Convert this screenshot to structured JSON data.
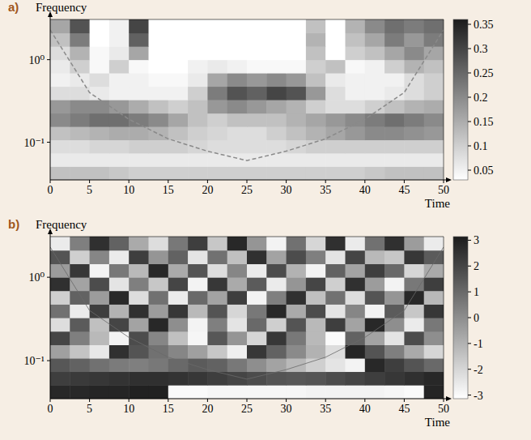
{
  "chart_data": [
    {
      "type": "heatmap",
      "title": "a)",
      "y_label": "Frequency",
      "x_label": "Time",
      "log": "y",
      "xlim": [
        0,
        50
      ],
      "ylim": [
        0.035,
        3.07
      ],
      "xticks": [
        0,
        5,
        10,
        15,
        20,
        25,
        30,
        35,
        40,
        45,
        50
      ],
      "yticks": [
        {
          "value": 0.1,
          "label": "10⁻¹"
        },
        {
          "value": 1,
          "label": "10⁰"
        }
      ],
      "x_bins": [
        0,
        2.5,
        5,
        7.5,
        10,
        12.5,
        15,
        17.5,
        20,
        22.5,
        25,
        27.5,
        30,
        32.5,
        35,
        37.5,
        40,
        42.5,
        45,
        47.5,
        50
      ],
      "y_bins": [
        0.035,
        0.051,
        0.074,
        0.107,
        0.155,
        0.225,
        0.327,
        0.475,
        0.69,
        1.0,
        1.45,
        2.11,
        3.07
      ],
      "cells": [
        [
          0.12,
          0.12,
          0.12,
          0.11,
          0.1,
          0.1,
          0.1,
          0.1,
          0.1,
          0.1,
          0.1,
          0.1,
          0.1,
          0.1,
          0.1,
          0.1,
          0.11,
          0.12,
          0.12,
          0.12
        ],
        [
          0.06,
          0.06,
          0.06,
          0.06,
          0.06,
          0.06,
          0.06,
          0.06,
          0.06,
          0.06,
          0.06,
          0.06,
          0.06,
          0.06,
          0.06,
          0.06,
          0.06,
          0.06,
          0.06,
          0.06
        ],
        [
          0.08,
          0.08,
          0.09,
          0.09,
          0.1,
          0.1,
          0.1,
          0.09,
          0.08,
          0.08,
          0.08,
          0.08,
          0.09,
          0.1,
          0.1,
          0.1,
          0.1,
          0.1,
          0.1,
          0.1
        ],
        [
          0.12,
          0.13,
          0.14,
          0.15,
          0.15,
          0.14,
          0.12,
          0.1,
          0.09,
          0.08,
          0.08,
          0.1,
          0.12,
          0.14,
          0.16,
          0.18,
          0.2,
          0.2,
          0.19,
          0.18
        ],
        [
          0.2,
          0.22,
          0.24,
          0.24,
          0.22,
          0.2,
          0.16,
          0.12,
          0.1,
          0.12,
          0.12,
          0.12,
          0.14,
          0.16,
          0.18,
          0.2,
          0.22,
          0.24,
          0.22,
          0.2
        ],
        [
          0.18,
          0.2,
          0.2,
          0.18,
          0.15,
          0.12,
          0.1,
          0.12,
          0.18,
          0.2,
          0.18,
          0.16,
          0.14,
          0.1,
          0.08,
          0.08,
          0.1,
          0.12,
          0.14,
          0.15
        ],
        [
          0.08,
          0.08,
          0.06,
          0.05,
          0.05,
          0.05,
          0.05,
          0.1,
          0.22,
          0.28,
          0.26,
          0.3,
          0.28,
          0.18,
          0.08,
          0.05,
          0.05,
          0.06,
          0.08,
          0.1
        ],
        [
          0.05,
          0.06,
          0.08,
          0.05,
          0.05,
          0.04,
          0.04,
          0.06,
          0.16,
          0.2,
          0.18,
          0.2,
          0.18,
          0.12,
          0.06,
          0.05,
          0.05,
          0.05,
          0.08,
          0.1
        ],
        [
          0.06,
          0.1,
          0.04,
          0.1,
          0.04,
          0.03,
          0.03,
          0.05,
          0.06,
          0.05,
          0.04,
          0.04,
          0.04,
          0.1,
          0.12,
          0.04,
          0.05,
          0.1,
          0.14,
          0.12
        ],
        [
          0.08,
          0.14,
          0.04,
          0.06,
          0.16,
          0.03,
          0.03,
          0.03,
          0.03,
          0.03,
          0.03,
          0.03,
          0.03,
          0.12,
          0.03,
          0.1,
          0.12,
          0.16,
          0.2,
          0.16
        ],
        [
          0.12,
          0.22,
          0.03,
          0.05,
          0.26,
          0.03,
          0.03,
          0.03,
          0.03,
          0.03,
          0.03,
          0.03,
          0.03,
          0.14,
          0.03,
          0.12,
          0.16,
          0.22,
          0.18,
          0.22
        ],
        [
          0.16,
          0.28,
          0.03,
          0.05,
          0.3,
          0.03,
          0.03,
          0.03,
          0.03,
          0.03,
          0.03,
          0.03,
          0.03,
          0.12,
          0.03,
          0.14,
          0.2,
          0.24,
          0.22,
          0.24
        ]
      ],
      "colorbar_lim": [
        0.03,
        0.36
      ],
      "colorbar_ticks": [
        0.05,
        0.1,
        0.15,
        0.2,
        0.25,
        0.3,
        0.35
      ],
      "cone_of_influence": {
        "line_style": "dashed",
        "x": [
          0,
          5,
          10,
          15,
          20,
          25,
          30,
          35,
          40,
          45,
          50
        ],
        "y": [
          2.3,
          0.4,
          0.19,
          0.11,
          0.078,
          0.06,
          0.078,
          0.11,
          0.19,
          0.4,
          2.3
        ]
      }
    },
    {
      "type": "heatmap",
      "title": "b)",
      "y_label": "Frequency",
      "x_label": "Time",
      "log": "y",
      "xlim": [
        0,
        50
      ],
      "ylim": [
        0.035,
        3.07
      ],
      "xticks": [
        0,
        5,
        10,
        15,
        20,
        25,
        30,
        35,
        40,
        45,
        50
      ],
      "yticks": [
        {
          "value": 0.1,
          "label": "10⁻¹"
        },
        {
          "value": 1,
          "label": "10⁰"
        }
      ],
      "x_bins": [
        0,
        2.5,
        5,
        7.5,
        10,
        12.5,
        15,
        17.5,
        20,
        22.5,
        25,
        27.5,
        30,
        32.5,
        35,
        37.5,
        40,
        42.5,
        45,
        47.5,
        50
      ],
      "y_bins": [
        0.035,
        0.051,
        0.074,
        0.107,
        0.155,
        0.225,
        0.327,
        0.475,
        0.69,
        1.0,
        1.45,
        2.11,
        3.07
      ],
      "cells": [
        [
          2.8,
          2.8,
          2.9,
          2.9,
          3.0,
          3.0,
          -3.0,
          -3.0,
          -2.9,
          -2.9,
          -2.9,
          -2.9,
          -2.9,
          -2.8,
          -2.8,
          -2.8,
          -2.8,
          -2.9,
          -3.0,
          2.9
        ],
        [
          2.2,
          2.3,
          2.4,
          2.5,
          2.6,
          2.6,
          2.5,
          2.4,
          2.2,
          2.0,
          1.8,
          1.6,
          1.5,
          1.6,
          1.8,
          2.0,
          2.2,
          2.4,
          2.6,
          2.8
        ],
        [
          1.5,
          1.2,
          0.8,
          0.5,
          0.4,
          0.6,
          1.0,
          1.4,
          1.2,
          0.6,
          0.0,
          -0.6,
          -1.2,
          -1.8,
          -2.4,
          -2.8,
          2.8,
          2.2,
          1.6,
          1.0
        ],
        [
          -0.5,
          -1.5,
          -2.5,
          2.6,
          1.6,
          0.8,
          0.2,
          -0.5,
          -1.6,
          -2.7,
          2.4,
          1.2,
          0.1,
          -1.0,
          -2.2,
          2.9,
          1.6,
          0.4,
          -0.8,
          -2.0
        ],
        [
          2.0,
          0.4,
          -1.2,
          -2.8,
          1.8,
          0.2,
          -1.4,
          -2.9,
          1.5,
          -0.2,
          -2.0,
          2.4,
          0.6,
          -1.2,
          -3.0,
          1.2,
          -0.6,
          -2.4,
          1.8,
          0.0
        ],
        [
          -2.2,
          1.4,
          -1.4,
          2.0,
          -0.6,
          2.8,
          0.0,
          -2.8,
          0.4,
          -2.4,
          1.0,
          -1.8,
          1.6,
          -1.2,
          2.2,
          -0.6,
          2.8,
          0.0,
          -2.6,
          0.6
        ],
        [
          0.8,
          -2.6,
          2.2,
          -1.0,
          2.6,
          -0.4,
          2.4,
          -1.2,
          1.6,
          -2.0,
          0.6,
          2.8,
          -0.8,
          1.8,
          -2.4,
          0.2,
          -2.8,
          1.4,
          -1.6,
          2.4
        ],
        [
          -1.8,
          1.2,
          -0.4,
          2.8,
          -2.2,
          0.8,
          -2.6,
          1.0,
          -0.6,
          2.2,
          -2.8,
          0.4,
          2.6,
          -1.4,
          0.8,
          -2.2,
          1.6,
          -0.2,
          2.8,
          -1.2
        ],
        [
          2.6,
          -0.6,
          1.8,
          -2.4,
          0.4,
          -1.6,
          2.0,
          -2.8,
          2.4,
          -0.8,
          1.4,
          -2.6,
          -0.2,
          2.0,
          -1.8,
          2.6,
          -0.4,
          -2.8,
          0.6,
          2.2
        ],
        [
          -0.4,
          2.4,
          -2.8,
          0.6,
          -1.2,
          2.8,
          -0.8,
          1.6,
          -2.2,
          0.2,
          -2.6,
          1.8,
          -1.0,
          -2.8,
          1.2,
          -0.6,
          2.2,
          1.0,
          -2.0,
          -0.8
        ],
        [
          1.6,
          -1.8,
          0.2,
          -2.6,
          2.2,
          -0.2,
          1.2,
          -2.4,
          0.8,
          -1.4,
          2.6,
          -0.6,
          1.8,
          0.4,
          -2.4,
          2.0,
          -1.2,
          -1.6,
          2.4,
          1.4
        ],
        [
          -2.6,
          0.4,
          2.6,
          1.2,
          -0.8,
          -2.2,
          0.6,
          2.2,
          -1.6,
          2.8,
          -0.2,
          -2.8,
          0.8,
          -2.0,
          2.6,
          -2.6,
          0.8,
          2.6,
          -0.4,
          -2.6
        ]
      ],
      "colorbar_lim": [
        -3.14,
        3.14
      ],
      "colorbar_ticks": [
        -3,
        -2,
        -1,
        0,
        1,
        2,
        3
      ],
      "cone_of_influence": {
        "line_style": "solid",
        "x": [
          0,
          5,
          10,
          15,
          20,
          25,
          30,
          35,
          40,
          45,
          50
        ],
        "y": [
          2.3,
          0.4,
          0.19,
          0.11,
          0.078,
          0.06,
          0.078,
          0.11,
          0.19,
          0.4,
          2.3
        ]
      }
    }
  ]
}
